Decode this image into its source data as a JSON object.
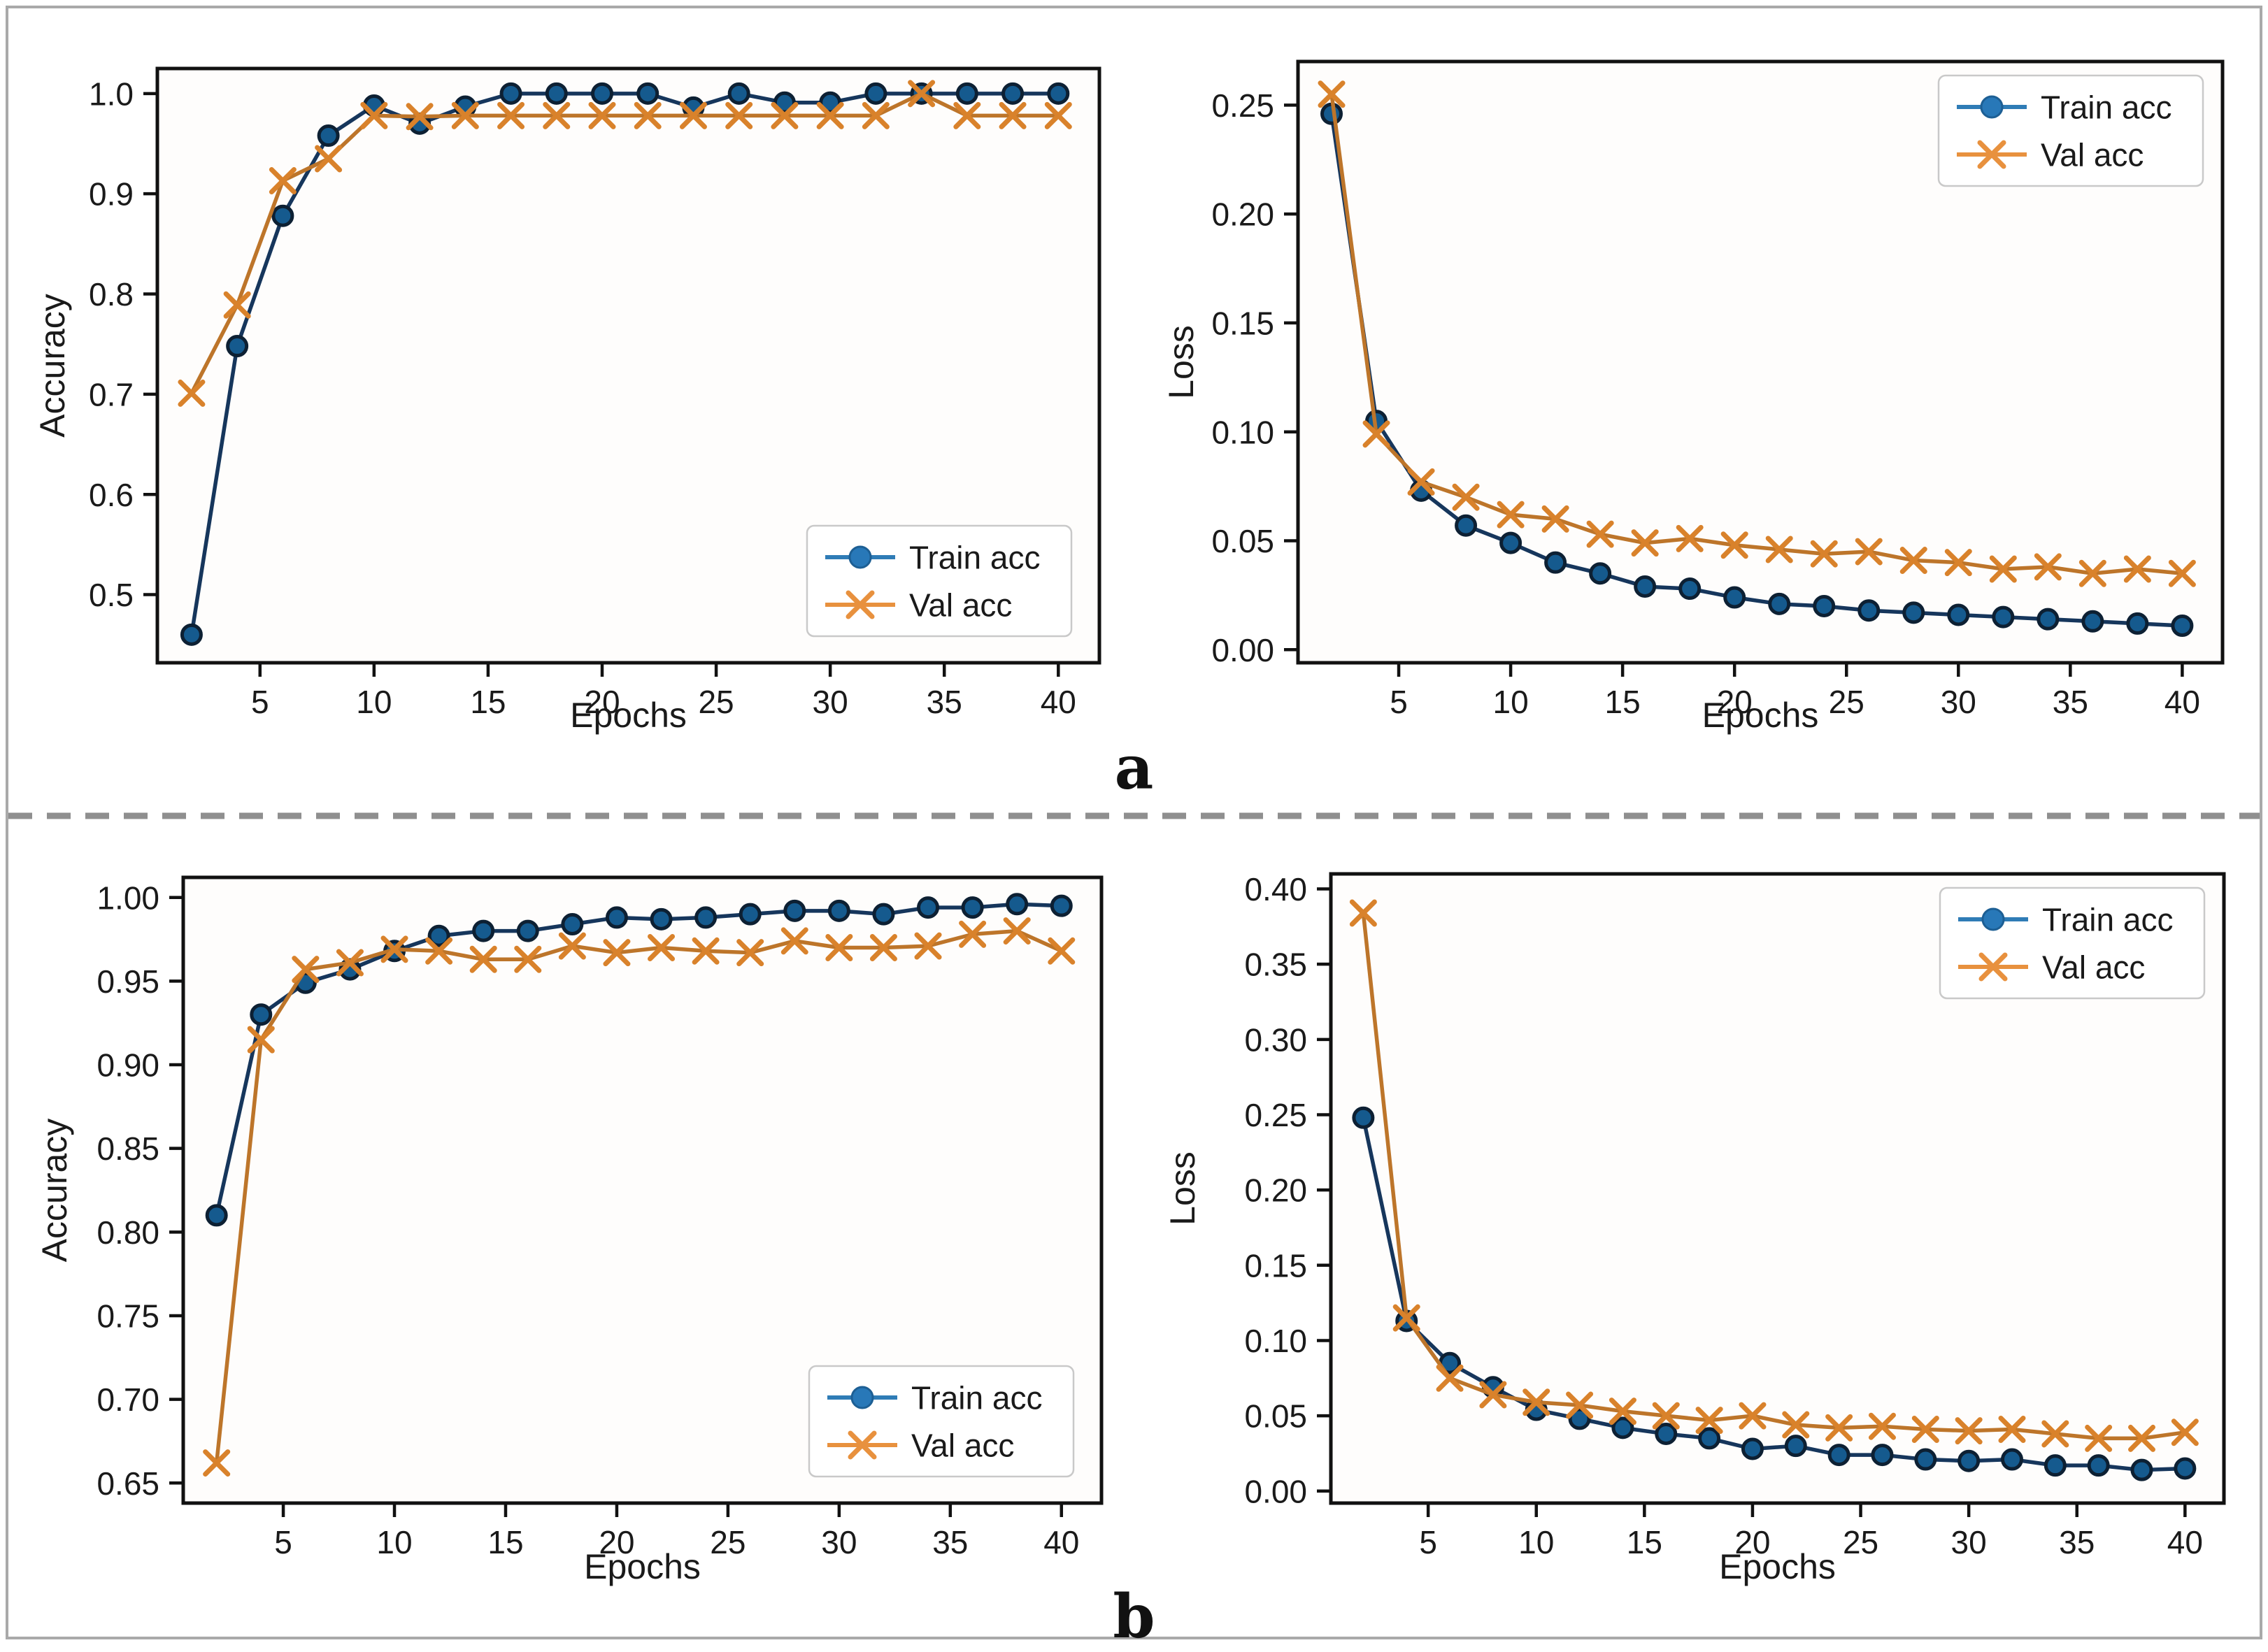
{
  "figure": {
    "panel_a_label": "a",
    "panel_b_label": "b",
    "colors": {
      "train_line": "#16365c",
      "train_marker_fill": "#155a8e",
      "train_marker_edge": "#0d2033",
      "val_line": "#bd752a",
      "val_marker": "#d9822b",
      "legend_train_line": "#2f7cb6",
      "legend_train_fill": "#2878b8",
      "legend_train_edge": "#1d5f94",
      "legend_val": "#e8913e",
      "spine": "#111111",
      "divider": "#8f8f8f",
      "legend_border": "#c9c9c9"
    }
  },
  "chart_data": [
    {
      "id": "a-accuracy",
      "type": "line",
      "title": "",
      "xlabel": "Epochs",
      "ylabel": "Accuracy",
      "x": [
        2,
        4,
        6,
        8,
        10,
        12,
        14,
        16,
        18,
        20,
        22,
        24,
        26,
        28,
        30,
        32,
        34,
        36,
        38,
        40
      ],
      "series": [
        {
          "name": "Train acc",
          "marker": "circle",
          "values": [
            0.46,
            0.748,
            0.878,
            0.958,
            0.988,
            0.97,
            0.987,
            1.0,
            1.0,
            1.0,
            1.0,
            0.986,
            1.0,
            0.991,
            0.991,
            1.0,
            1.0,
            1.0,
            1.0,
            1.0
          ]
        },
        {
          "name": "Val acc",
          "marker": "x",
          "values": [
            0.701,
            0.789,
            0.913,
            0.935,
            0.978,
            0.977,
            0.978,
            0.978,
            0.978,
            0.978,
            0.978,
            0.978,
            0.978,
            0.978,
            0.978,
            0.978,
            1.0,
            0.978,
            0.978,
            0.978
          ]
        }
      ],
      "xlim": [
        0.5,
        41.8
      ],
      "ylim": [
        0.432,
        1.025
      ],
      "xticks": [
        5,
        10,
        15,
        20,
        25,
        30,
        35,
        40
      ],
      "xtick_labels": [
        "5",
        "10",
        "15",
        "20",
        "25",
        "30",
        "35",
        "40"
      ],
      "yticks": [
        0.5,
        0.6,
        0.7,
        0.8,
        0.9,
        1.0
      ],
      "ytick_labels": [
        "0.5",
        "0.6",
        "0.7",
        "0.8",
        "0.9",
        "1.0"
      ],
      "legend_position": "lower-right",
      "grid": false
    },
    {
      "id": "a-loss",
      "type": "line",
      "title": "",
      "xlabel": "Epochs",
      "ylabel": "Loss",
      "x": [
        2,
        4,
        6,
        8,
        10,
        12,
        14,
        16,
        18,
        20,
        22,
        24,
        26,
        28,
        30,
        32,
        34,
        36,
        38,
        40
      ],
      "series": [
        {
          "name": "Train acc",
          "marker": "circle",
          "values": [
            0.246,
            0.105,
            0.073,
            0.057,
            0.049,
            0.04,
            0.035,
            0.029,
            0.028,
            0.024,
            0.021,
            0.02,
            0.018,
            0.017,
            0.016,
            0.015,
            0.014,
            0.013,
            0.012,
            0.011
          ]
        },
        {
          "name": "Val acc",
          "marker": "x",
          "values": [
            0.255,
            0.099,
            0.077,
            0.07,
            0.062,
            0.06,
            0.053,
            0.049,
            0.051,
            0.048,
            0.046,
            0.044,
            0.045,
            0.041,
            0.04,
            0.037,
            0.038,
            0.035,
            0.037,
            0.035
          ]
        }
      ],
      "xlim": [
        0.5,
        41.8
      ],
      "ylim": [
        -0.006,
        0.27
      ],
      "xticks": [
        5,
        10,
        15,
        20,
        25,
        30,
        35,
        40
      ],
      "xtick_labels": [
        "5",
        "10",
        "15",
        "20",
        "25",
        "30",
        "35",
        "40"
      ],
      "yticks": [
        0.0,
        0.05,
        0.1,
        0.15,
        0.2,
        0.25
      ],
      "ytick_labels": [
        "0.00",
        "0.05",
        "0.10",
        "0.15",
        "0.20",
        "0.25"
      ],
      "legend_position": "upper-right",
      "grid": false
    },
    {
      "id": "b-accuracy",
      "type": "line",
      "title": "",
      "xlabel": "Epochs",
      "ylabel": "Accuracy",
      "x": [
        2,
        4,
        6,
        8,
        10,
        12,
        14,
        16,
        18,
        20,
        22,
        24,
        26,
        28,
        30,
        32,
        34,
        36,
        38,
        40
      ],
      "series": [
        {
          "name": "Train acc",
          "marker": "circle",
          "values": [
            0.81,
            0.93,
            0.949,
            0.957,
            0.968,
            0.977,
            0.98,
            0.98,
            0.984,
            0.988,
            0.987,
            0.988,
            0.99,
            0.992,
            0.992,
            0.99,
            0.994,
            0.994,
            0.996,
            0.995
          ]
        },
        {
          "name": "Val acc",
          "marker": "x",
          "values": [
            0.662,
            0.915,
            0.957,
            0.961,
            0.969,
            0.968,
            0.963,
            0.963,
            0.971,
            0.967,
            0.97,
            0.968,
            0.967,
            0.974,
            0.97,
            0.97,
            0.971,
            0.978,
            0.98,
            0.968
          ]
        }
      ],
      "xlim": [
        0.5,
        41.8
      ],
      "ylim": [
        0.638,
        1.012
      ],
      "xticks": [
        5,
        10,
        15,
        20,
        25,
        30,
        35,
        40
      ],
      "xtick_labels": [
        "5",
        "10",
        "15",
        "20",
        "25",
        "30",
        "35",
        "40"
      ],
      "yticks": [
        0.65,
        0.7,
        0.75,
        0.8,
        0.85,
        0.9,
        0.95,
        1.0
      ],
      "ytick_labels": [
        "0.65",
        "0.70",
        "0.75",
        "0.80",
        "0.85",
        "0.90",
        "0.95",
        "1.00"
      ],
      "legend_position": "lower-right",
      "grid": false
    },
    {
      "id": "b-loss",
      "type": "line",
      "title": "",
      "xlabel": "Epochs",
      "ylabel": "Loss",
      "x": [
        2,
        4,
        6,
        8,
        10,
        12,
        14,
        16,
        18,
        20,
        22,
        24,
        26,
        28,
        30,
        32,
        34,
        36,
        38,
        40
      ],
      "series": [
        {
          "name": "Train acc",
          "marker": "circle",
          "values": [
            0.248,
            0.113,
            0.085,
            0.069,
            0.054,
            0.048,
            0.042,
            0.038,
            0.035,
            0.028,
            0.03,
            0.024,
            0.024,
            0.021,
            0.02,
            0.021,
            0.017,
            0.017,
            0.014,
            0.015
          ]
        },
        {
          "name": "Val acc",
          "marker": "x",
          "values": [
            0.384,
            0.115,
            0.075,
            0.064,
            0.059,
            0.057,
            0.053,
            0.05,
            0.047,
            0.05,
            0.044,
            0.042,
            0.043,
            0.041,
            0.04,
            0.041,
            0.038,
            0.035,
            0.035,
            0.039
          ]
        }
      ],
      "xlim": [
        0.5,
        41.8
      ],
      "ylim": [
        -0.008,
        0.41
      ],
      "xticks": [
        5,
        10,
        15,
        20,
        25,
        30,
        35,
        40
      ],
      "xtick_labels": [
        "5",
        "10",
        "15",
        "20",
        "25",
        "30",
        "35",
        "40"
      ],
      "yticks": [
        0.0,
        0.05,
        0.1,
        0.15,
        0.2,
        0.25,
        0.3,
        0.35,
        0.4
      ],
      "ytick_labels": [
        "0.00",
        "0.05",
        "0.10",
        "0.15",
        "0.20",
        "0.25",
        "0.30",
        "0.35",
        "0.40"
      ],
      "legend_position": "upper-right",
      "grid": false
    }
  ]
}
